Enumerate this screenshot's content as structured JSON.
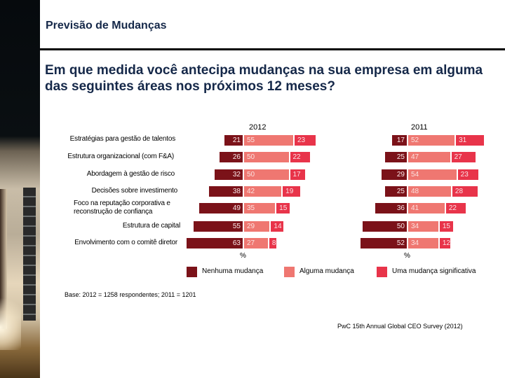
{
  "header": {
    "title": "Previsão de Mudanças",
    "question": "Em que medida você antecipa mudanças na sua empresa em alguma das seguintes áreas nos próximos 12 meses?"
  },
  "colors": {
    "none": "#7b1219",
    "some": "#ef7771",
    "significant": "#e8344a",
    "title": "#152849"
  },
  "chart_data": {
    "type": "bar",
    "orientation": "horizontal-diverging-stacked",
    "categories": [
      "Estratégias para gestão de talentos",
      "Estrutura organizacional (com F&A)",
      "Abordagem à gestão de risco",
      "Decisões sobre investimento",
      "Foco na reputação corporativa e reconstrução de confiança",
      "Estrutura de capital",
      "Envolvimento com o comitê diretor"
    ],
    "category_lines": [
      [
        "Estratégias para gestão de talentos"
      ],
      [
        "Estrutura organizacional (com F&A)"
      ],
      [
        "Abordagem à gestão de risco"
      ],
      [
        "Decisões sobre investimento"
      ],
      [
        "Foco na reputação corporativa e",
        "reconstrução de confiança"
      ],
      [
        "Estrutura de capital"
      ],
      [
        "Envolvimento com o comitê diretor"
      ]
    ],
    "panels": [
      {
        "title": "2012",
        "series": [
          {
            "name": "Nenhuma mudança",
            "values": [
              21,
              26,
              32,
              38,
              49,
              55,
              63
            ]
          },
          {
            "name": "Alguma mudança",
            "values": [
              55,
              50,
              50,
              42,
              35,
              29,
              27
            ]
          },
          {
            "name": "Uma mudança significativa",
            "values": [
              23,
              22,
              17,
              19,
              15,
              14,
              8
            ]
          }
        ],
        "xlabel": "%"
      },
      {
        "title": "2011",
        "series": [
          {
            "name": "Nenhuma mudança",
            "values": [
              17,
              25,
              29,
              25,
              36,
              50,
              52
            ]
          },
          {
            "name": "Alguma mudança",
            "values": [
              52,
              47,
              54,
              48,
              41,
              34,
              34
            ]
          },
          {
            "name": "Uma mudança significativa",
            "values": [
              31,
              27,
              23,
              28,
              22,
              15,
              12
            ]
          }
        ],
        "xlabel": "%"
      }
    ],
    "legend": [
      "Nenhuma mudança",
      "Alguma mudança",
      "Uma mudança significativa"
    ],
    "legend_position": "bottom",
    "units": "%"
  },
  "footer": {
    "base": "Base: 2012 = 1258 respondentes; 2011 = 1201",
    "source": "PwC 15th Annual Global CEO Survey (2012)"
  }
}
